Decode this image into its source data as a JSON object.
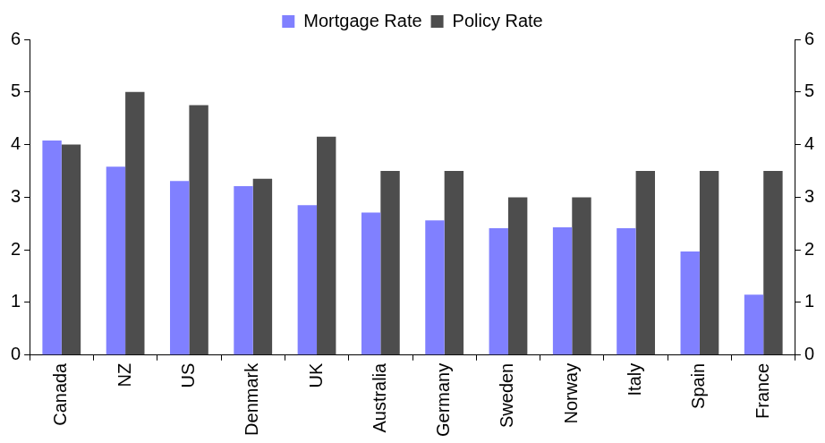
{
  "chart_data": {
    "type": "bar",
    "categories": [
      "Canada",
      "NZ",
      "US",
      "Denmark",
      "UK",
      "Australia",
      "Germany",
      "Sweden",
      "Norway",
      "Italy",
      "Spain",
      "France"
    ],
    "series": [
      {
        "name": "Mortgage Rate",
        "color": "#8080ff",
        "values": [
          4.08,
          3.58,
          3.31,
          3.21,
          2.85,
          2.71,
          2.56,
          2.41,
          2.43,
          2.41,
          1.97,
          1.15
        ]
      },
      {
        "name": "Policy Rate",
        "color": "#4d4d4d",
        "values": [
          4.0,
          5.0,
          4.75,
          3.35,
          4.15,
          3.5,
          3.5,
          3.0,
          3.0,
          3.5,
          3.5,
          3.5
        ]
      }
    ],
    "ylim": [
      0,
      6
    ],
    "yticks": [
      0,
      1,
      2,
      3,
      4,
      5,
      6
    ],
    "y2lim": [
      0,
      6
    ],
    "y2ticks": [
      0,
      1,
      2,
      3,
      4,
      5,
      6
    ],
    "grid": false,
    "legend": "top"
  }
}
